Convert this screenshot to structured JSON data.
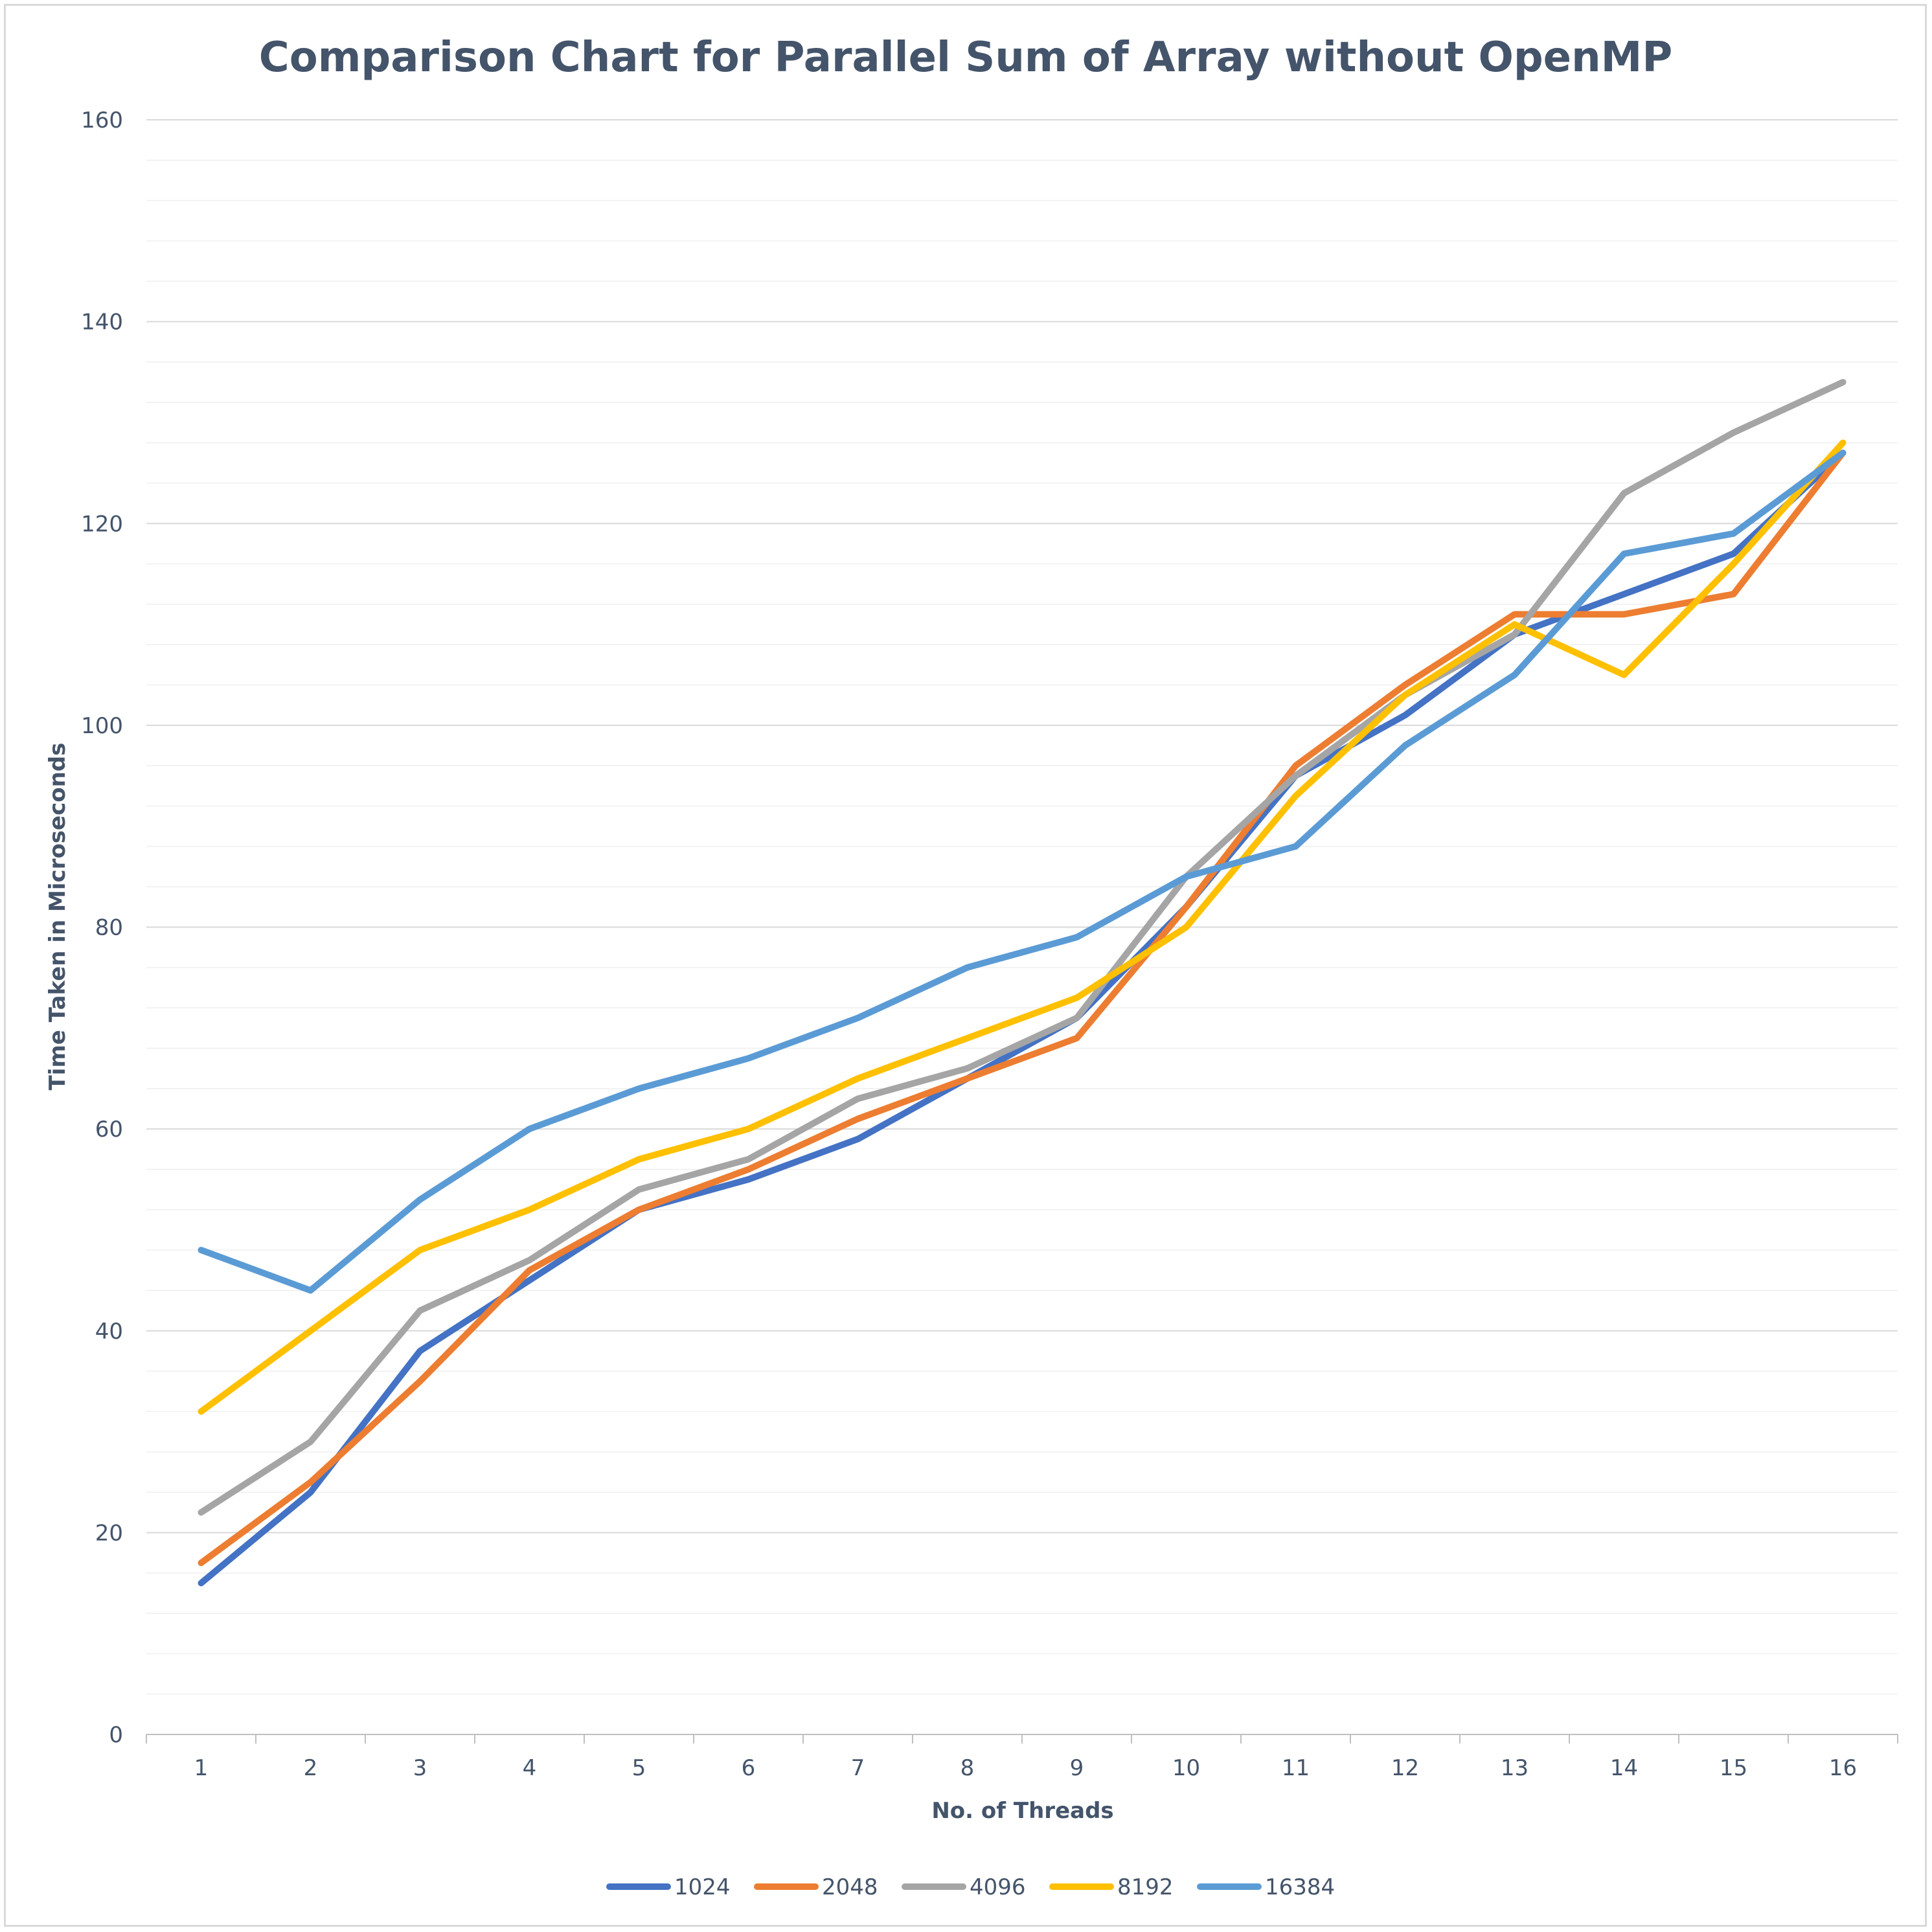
{
  "chart_data": {
    "type": "line",
    "title": "Comparison Chart for Parallel Sum of Array without OpenMP",
    "xlabel": "No. of Threads",
    "ylabel": "Time Taken in Microseconds",
    "categories": [
      "1",
      "2",
      "3",
      "4",
      "5",
      "6",
      "7",
      "8",
      "9",
      "10",
      "11",
      "12",
      "13",
      "14",
      "15",
      "16"
    ],
    "ylim": [
      0,
      160
    ],
    "yticks": [
      "0",
      "20",
      "40",
      "60",
      "80",
      "100",
      "120",
      "140",
      "160"
    ],
    "grid": true,
    "legend_position": "bottom",
    "series": [
      {
        "name": "1024",
        "color": "#4472c4",
        "values": [
          15,
          24,
          38,
          45,
          52,
          55,
          59,
          65,
          71,
          82,
          95,
          101,
          109,
          113,
          117,
          127
        ]
      },
      {
        "name": "2048",
        "color": "#ed7d31",
        "values": [
          17,
          25,
          35,
          46,
          52,
          56,
          61,
          65,
          69,
          82,
          96,
          104,
          111,
          111,
          113,
          127
        ]
      },
      {
        "name": "4096",
        "color": "#a5a5a5",
        "values": [
          22,
          29,
          42,
          47,
          54,
          57,
          63,
          66,
          71,
          85,
          95,
          103,
          109,
          123,
          129,
          134
        ]
      },
      {
        "name": "8192",
        "color": "#ffc000",
        "values": [
          32,
          40,
          48,
          52,
          57,
          60,
          65,
          69,
          73,
          80,
          93,
          103,
          110,
          105,
          116,
          128
        ]
      },
      {
        "name": "16384",
        "color": "#5b9bd5",
        "values": [
          48,
          44,
          53,
          60,
          64,
          67,
          71,
          76,
          79,
          85,
          88,
          98,
          105,
          117,
          119,
          127
        ]
      }
    ]
  }
}
